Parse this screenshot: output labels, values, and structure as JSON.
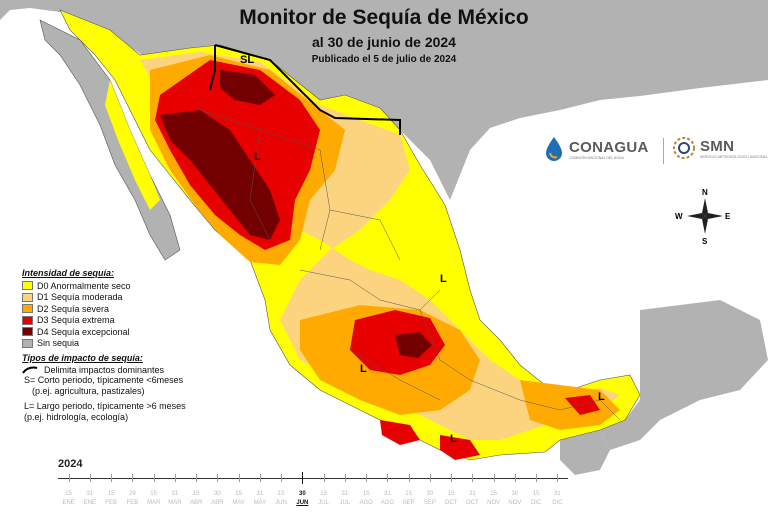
{
  "title": "Monitor de Sequía de México",
  "subtitle": "al 30 de junio de 2024",
  "published": "Publicado el 5 de julio de 2024",
  "legend": {
    "heading": "Intensidad de sequía:",
    "items": [
      {
        "label": "D0 Anormalmente seco",
        "color": "#ffff00"
      },
      {
        "label": "D1 Sequía moderada",
        "color": "#fcd37f"
      },
      {
        "label": "D2 Sequía severa",
        "color": "#ffaa00"
      },
      {
        "label": "D3 Sequía extrema",
        "color": "#e60000"
      },
      {
        "label": "D4 Sequía excepcional",
        "color": "#730000"
      },
      {
        "label": "Sin sequia",
        "color": "#b2b2b2"
      }
    ],
    "impact_heading": "Tipos de impacto de sequía:",
    "impact_line": "Delimita impactos dominantes",
    "short_term": "S= Corto periodo, típicamente <6meses",
    "short_term_ex": "(p.ej. agricultura, pastizales)",
    "long_term": "L= Largo periodo, típicamente >6 meses",
    "long_term_ex": "(p.ej. hidrología, ecología)"
  },
  "map_labels": [
    "SL",
    "L",
    "L",
    "L",
    "L",
    "L"
  ],
  "compass": {
    "n": "N",
    "s": "S",
    "e": "E",
    "w": "W"
  },
  "logos": {
    "conagua": "CONAGUA",
    "conagua_sub": "COMISIÓN NACIONAL DEL AGUA",
    "smn": "SMN",
    "smn_sub": "SERVICIO METEOROLÓGICO NACIONAL"
  },
  "timeline": {
    "year": "2024",
    "ticks": [
      "15",
      "31",
      "15",
      "29",
      "15",
      "31",
      "15",
      "30",
      "15",
      "31",
      "15",
      "30",
      "15",
      "31",
      "15",
      "31",
      "15",
      "30",
      "15",
      "31",
      "15",
      "30",
      "15",
      "31"
    ],
    "months": [
      "ENE",
      "FEB",
      "MAR",
      "ABR",
      "MAY",
      "JUN",
      "JUL",
      "AGO",
      "SEP",
      "OCT",
      "NOV",
      "DIC"
    ],
    "current_tick": "30",
    "current_month": "JUN"
  },
  "colors": {
    "ocean": "#ffffff",
    "country_other": "#b2b2b2",
    "border": "#555555",
    "impact_line": "#000000"
  }
}
